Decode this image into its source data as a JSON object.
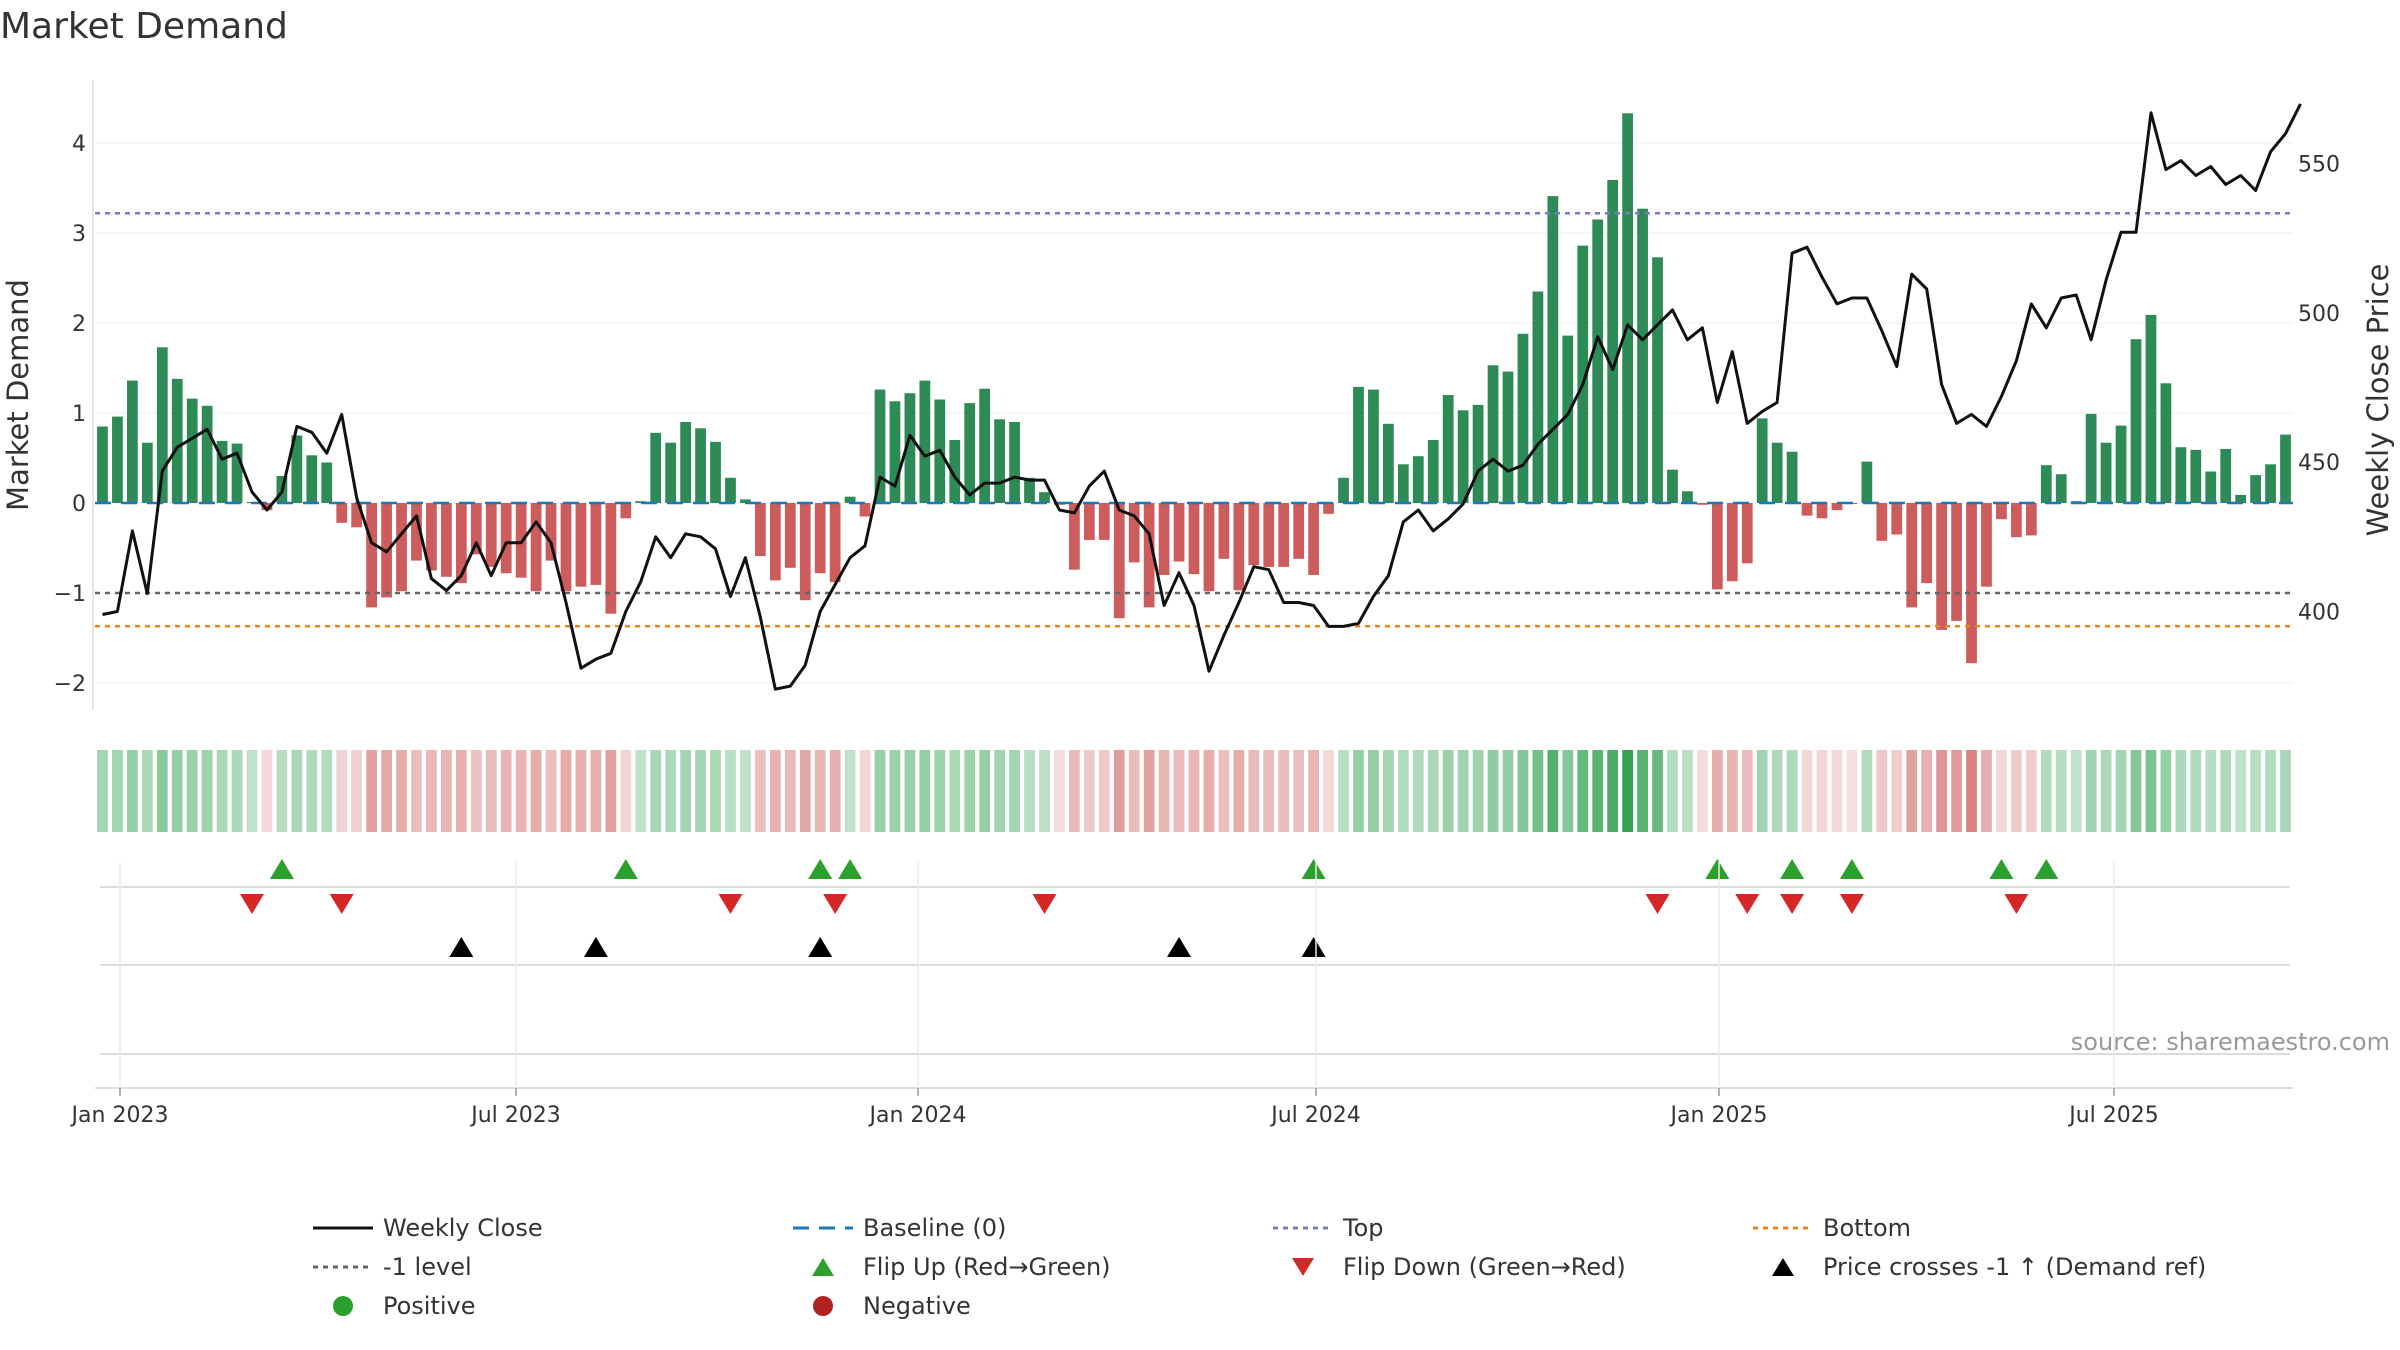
{
  "chart_data": {
    "type": "bar+line",
    "title": "Market Demand",
    "ylabel": "Market Demand",
    "y2label": "Weekly Close Price",
    "ylim": [
      -2.3,
      4.7
    ],
    "y2lim": [
      367,
      578
    ],
    "yticks": [
      "−2",
      "−1",
      "0",
      "1",
      "2",
      "3",
      "4"
    ],
    "y2ticks": [
      "400",
      "450",
      "500",
      "550"
    ],
    "xticks": [
      "Jan 2023",
      "Jul 2023",
      "Jan 2024",
      "Jul 2024",
      "Jan 2025",
      "Jul 2025"
    ],
    "reference_lines": {
      "top": 3.22,
      "minus_one": -1,
      "bottom": -1.37,
      "baseline": 0
    },
    "demand_values": [
      0.85,
      0.96,
      1.36,
      0.67,
      1.73,
      1.38,
      1.16,
      1.08,
      0.69,
      0.66,
      0.01,
      -0.08,
      0.3,
      0.75,
      0.53,
      0.45,
      -0.22,
      -0.27,
      -1.16,
      -1.05,
      -0.98,
      -0.64,
      -0.75,
      -0.82,
      -0.89,
      -0.57,
      -0.71,
      -0.78,
      -0.83,
      -0.98,
      -0.64,
      -0.98,
      -0.93,
      -0.91,
      -1.23,
      -0.17,
      0.02,
      0.78,
      0.67,
      0.9,
      0.83,
      0.68,
      0.28,
      0.04,
      -0.59,
      -0.86,
      -0.72,
      -1.08,
      -0.78,
      -0.88,
      0.07,
      -0.15,
      1.26,
      1.13,
      1.22,
      1.36,
      1.15,
      0.7,
      1.11,
      1.27,
      0.93,
      0.9,
      0.28,
      0.12,
      -0.02,
      -0.74,
      -0.41,
      -0.41,
      -1.28,
      -0.66,
      -1.16,
      -0.8,
      -0.65,
      -0.79,
      -0.98,
      -0.62,
      -0.97,
      -0.69,
      -0.71,
      -0.71,
      -0.62,
      -0.8,
      -0.12,
      0.28,
      1.29,
      1.26,
      0.88,
      0.43,
      0.52,
      0.7,
      1.2,
      1.03,
      1.09,
      1.53,
      1.46,
      1.88,
      2.35,
      3.41,
      1.86,
      2.86,
      3.15,
      3.59,
      4.33,
      3.27,
      2.73,
      0.37,
      0.13,
      -0.02,
      -0.96,
      -0.87,
      -0.67,
      0.94,
      0.67,
      0.57,
      -0.14,
      -0.17,
      -0.08,
      -0.01,
      0.46,
      -0.42,
      -0.35,
      -1.16,
      -0.89,
      -1.41,
      -1.31,
      -1.78,
      -0.93,
      -0.18,
      -0.38,
      -0.36,
      0.42,
      0.32,
      0.02,
      0.99,
      0.67,
      0.86,
      1.82,
      2.09,
      1.33,
      0.62,
      0.59,
      0.35,
      0.6,
      0.09,
      0.31,
      0.43,
      0.76
    ],
    "price_values": [
      399,
      400,
      427,
      406,
      447,
      455,
      458,
      461,
      451,
      453,
      440,
      434,
      440,
      462,
      460,
      453,
      466,
      438,
      423,
      420,
      426,
      432,
      411,
      407,
      412,
      423,
      412,
      423,
      423,
      430,
      423,
      403,
      381,
      384,
      386,
      400,
      410,
      425,
      418,
      426,
      425,
      421,
      405,
      418,
      398,
      374,
      375,
      382,
      400,
      409,
      418,
      422,
      445,
      442,
      459,
      452,
      454,
      445,
      439,
      443,
      443,
      445,
      444,
      444,
      434,
      433,
      442,
      447,
      434,
      432,
      426,
      402,
      413,
      402,
      380,
      392,
      403,
      415,
      414,
      403,
      403,
      402,
      395,
      395,
      396,
      405,
      412,
      430,
      434,
      427,
      431,
      436,
      447,
      451,
      447,
      449,
      456,
      461,
      466,
      476,
      492,
      481,
      496,
      491,
      496,
      501,
      491,
      495,
      470,
      487,
      463,
      467,
      470,
      520,
      522,
      512,
      503,
      505,
      505,
      494,
      482,
      513,
      508,
      476,
      463,
      466,
      462,
      472,
      484,
      503,
      495,
      505,
      506,
      491,
      511,
      527,
      527,
      567,
      548,
      551,
      546,
      549,
      543,
      546,
      541,
      554,
      560,
      570
    ]
  },
  "strip_labels": {
    "positive": "Positive",
    "negative": "Negative"
  },
  "legend": {
    "weekly_close": "Weekly Close",
    "baseline": "Baseline (0)",
    "top": "Top",
    "bottom": "Bottom",
    "minus_one": "-1 level",
    "flip_up": "Flip Up (Red→Green)",
    "flip_down": "Flip Down (Green→Red)",
    "price_cross": "Price crosses -1 ↑ (Demand ref)",
    "positive": "Positive",
    "negative": "Negative"
  },
  "events": {
    "flip_up_weeks": [
      12,
      35,
      48,
      50,
      81,
      108,
      113,
      117,
      127,
      130
    ],
    "flip_down_weeks": [
      10,
      16,
      42,
      49,
      63,
      104,
      110,
      113,
      117,
      128
    ],
    "price_cross_weeks": [
      24,
      33,
      48,
      72,
      81
    ]
  },
  "colors": {
    "pos_bar": "#2e8b57",
    "neg_bar": "#cd5c5c",
    "price_line": "#111111",
    "baseline": "#1f77b4",
    "top": "#7b7bc0",
    "bottom": "#e8871e",
    "minus_one": "#666666",
    "flip_up": "#2ca02c",
    "flip_down": "#d62728",
    "price_cross": "#000000",
    "positive_dot": "#2ca02c",
    "negative_dot": "#b22222"
  },
  "source": "source: sharemaestro.com"
}
